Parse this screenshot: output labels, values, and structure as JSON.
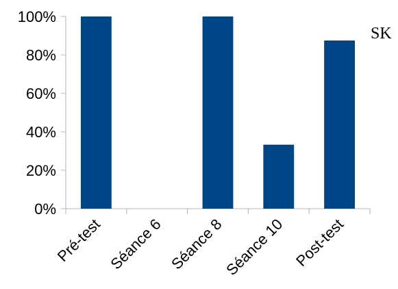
{
  "chart_data": {
    "type": "bar",
    "categories": [
      "Pré-test",
      "Séance 6",
      "Séance 8",
      "Séance 10",
      "Post-test"
    ],
    "values": [
      100,
      0,
      100,
      33.3,
      87.5
    ],
    "y_ticks": [
      "0%",
      "20%",
      "40%",
      "60%",
      "80%",
      "100%"
    ],
    "ylim": [
      0,
      100
    ],
    "grid": false,
    "bar_color": "#004586",
    "annotation": "SK"
  }
}
